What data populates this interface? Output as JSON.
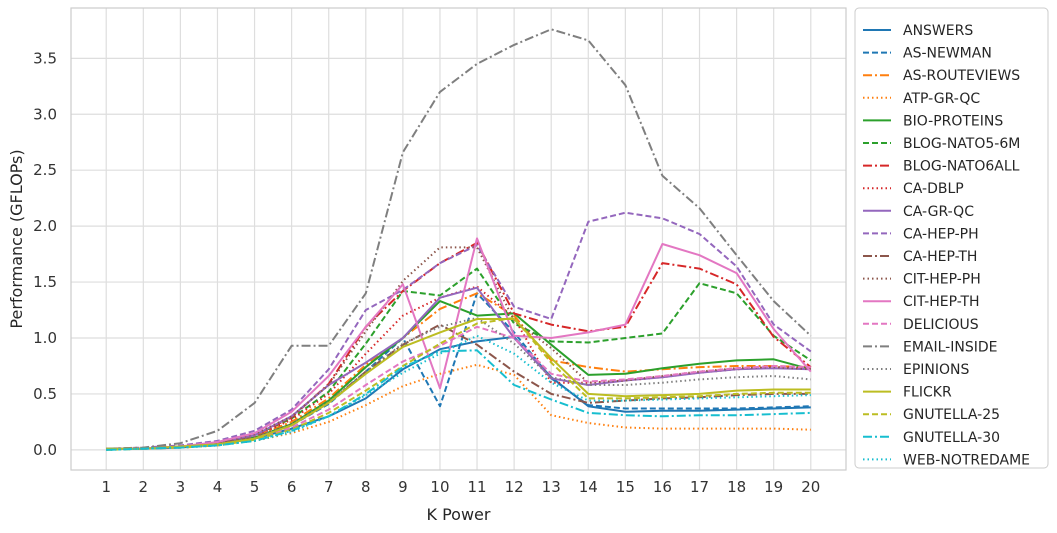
{
  "chart_data": {
    "type": "line",
    "xlabel": "K Power",
    "ylabel": "Performance (GFLOPs)",
    "x": [
      1,
      2,
      3,
      4,
      5,
      6,
      7,
      8,
      9,
      10,
      11,
      12,
      13,
      14,
      15,
      16,
      17,
      18,
      19,
      20
    ],
    "ylim": [
      -0.18,
      3.95
    ],
    "yticks": [
      0.0,
      0.5,
      1.0,
      1.5,
      2.0,
      2.5,
      3.0,
      3.5
    ],
    "ytick_labels": [
      "0.0",
      "0.5",
      "1.0",
      "1.5",
      "2.0",
      "2.5",
      "3.0",
      "3.5"
    ],
    "xtick_labels": [
      "1",
      "2",
      "3",
      "4",
      "5",
      "6",
      "7",
      "8",
      "9",
      "10",
      "11",
      "12",
      "13",
      "14",
      "15",
      "16",
      "17",
      "18",
      "19",
      "20"
    ],
    "grid": true,
    "legend_position": "outside-right",
    "series": [
      {
        "name": "ANSWERS",
        "color": "#1f77b4",
        "dash": "solid",
        "values": [
          0.01,
          0.01,
          0.02,
          0.05,
          0.1,
          0.19,
          0.3,
          0.46,
          0.72,
          0.9,
          0.97,
          1.01,
          0.65,
          0.39,
          0.34,
          0.35,
          0.35,
          0.36,
          0.37,
          0.38
        ]
      },
      {
        "name": "AS-NEWMAN",
        "color": "#1f77b4",
        "dash": "dashed",
        "values": [
          0.01,
          0.01,
          0.03,
          0.05,
          0.11,
          0.22,
          0.41,
          0.7,
          1.0,
          0.39,
          1.4,
          1.05,
          0.64,
          0.4,
          0.37,
          0.37,
          0.37,
          0.37,
          0.38,
          0.39
        ]
      },
      {
        "name": "AS-ROUTEVIEWS",
        "color": "#ff7f0e",
        "dash": "dashdot",
        "values": [
          0.01,
          0.01,
          0.03,
          0.05,
          0.12,
          0.25,
          0.46,
          0.76,
          1.0,
          1.26,
          1.4,
          1.2,
          0.8,
          0.74,
          0.7,
          0.72,
          0.74,
          0.75,
          0.75,
          0.74
        ]
      },
      {
        "name": "ATP-GR-QC",
        "color": "#ff7f0e",
        "dash": "dotted",
        "values": [
          0.0,
          0.01,
          0.02,
          0.04,
          0.08,
          0.15,
          0.25,
          0.4,
          0.57,
          0.68,
          0.76,
          0.67,
          0.31,
          0.24,
          0.2,
          0.19,
          0.19,
          0.19,
          0.19,
          0.18
        ]
      },
      {
        "name": "BIO-PROTEINS",
        "color": "#2ca02c",
        "dash": "solid",
        "values": [
          0.01,
          0.01,
          0.03,
          0.05,
          0.11,
          0.23,
          0.44,
          0.74,
          1.0,
          1.33,
          1.2,
          1.22,
          0.94,
          0.67,
          0.68,
          0.73,
          0.77,
          0.8,
          0.81,
          0.72
        ]
      },
      {
        "name": "BLOG-NATO5-6M",
        "color": "#2ca02c",
        "dash": "dashed",
        "values": [
          0.01,
          0.01,
          0.03,
          0.06,
          0.13,
          0.28,
          0.52,
          0.95,
          1.42,
          1.38,
          1.62,
          1.13,
          0.97,
          0.96,
          1.0,
          1.04,
          1.49,
          1.4,
          1.02,
          0.8
        ]
      },
      {
        "name": "BLOG-NATO6ALL",
        "color": "#d62728",
        "dash": "dashdot",
        "values": [
          0.01,
          0.01,
          0.03,
          0.06,
          0.13,
          0.29,
          0.59,
          1.1,
          1.42,
          1.67,
          1.85,
          1.22,
          1.12,
          1.06,
          1.1,
          1.67,
          1.62,
          1.48,
          1.01,
          0.74
        ]
      },
      {
        "name": "CA-DBLP",
        "color": "#d62728",
        "dash": "dotted",
        "values": [
          0.01,
          0.01,
          0.03,
          0.06,
          0.12,
          0.27,
          0.5,
          0.86,
          1.2,
          1.36,
          1.46,
          1.18,
          0.6,
          0.6,
          0.62,
          0.65,
          0.69,
          0.72,
          0.74,
          0.73
        ]
      },
      {
        "name": "CA-GR-QC",
        "color": "#9467bd",
        "dash": "solid",
        "values": [
          0.01,
          0.01,
          0.03,
          0.06,
          0.13,
          0.3,
          0.58,
          0.78,
          1.0,
          1.36,
          1.45,
          1.0,
          0.64,
          0.58,
          0.62,
          0.65,
          0.69,
          0.72,
          0.73,
          0.72
        ]
      },
      {
        "name": "CA-HEP-PH",
        "color": "#9467bd",
        "dash": "dashed",
        "values": [
          0.01,
          0.02,
          0.04,
          0.08,
          0.17,
          0.36,
          0.72,
          1.25,
          1.43,
          1.67,
          1.83,
          1.28,
          1.17,
          2.04,
          2.12,
          2.07,
          1.93,
          1.64,
          1.12,
          0.88
        ]
      },
      {
        "name": "CA-HEP-TH",
        "color": "#8c564b",
        "dash": "dashdot",
        "values": [
          0.01,
          0.01,
          0.03,
          0.06,
          0.11,
          0.22,
          0.42,
          0.7,
          0.94,
          1.12,
          0.94,
          0.7,
          0.5,
          0.42,
          0.44,
          0.46,
          0.47,
          0.49,
          0.5,
          0.5
        ]
      },
      {
        "name": "CIT-HEP-PH",
        "color": "#8c564b",
        "dash": "dotted",
        "values": [
          0.01,
          0.01,
          0.03,
          0.06,
          0.14,
          0.3,
          0.58,
          1.06,
          1.51,
          1.81,
          1.81,
          1.16,
          0.91,
          0.6,
          0.62,
          0.66,
          0.7,
          0.73,
          0.74,
          0.72
        ]
      },
      {
        "name": "CIT-HEP-TH",
        "color": "#e377c2",
        "dash": "solid",
        "values": [
          0.01,
          0.01,
          0.03,
          0.07,
          0.15,
          0.34,
          0.66,
          1.1,
          1.48,
          0.55,
          1.89,
          1.02,
          1.0,
          1.05,
          1.12,
          1.84,
          1.74,
          1.58,
          1.08,
          0.7
        ]
      },
      {
        "name": "DELICIOUS",
        "color": "#e377c2",
        "dash": "dashed",
        "values": [
          0.01,
          0.01,
          0.02,
          0.04,
          0.1,
          0.2,
          0.36,
          0.58,
          0.79,
          0.93,
          1.1,
          1.0,
          0.68,
          0.61,
          0.63,
          0.66,
          0.7,
          0.73,
          0.75,
          0.74
        ]
      },
      {
        "name": "EMAIL-INSIDE",
        "color": "#7f7f7f",
        "dash": "dashdot",
        "values": [
          0.01,
          0.02,
          0.06,
          0.17,
          0.42,
          0.93,
          0.93,
          1.4,
          2.66,
          3.2,
          3.45,
          3.62,
          3.76,
          3.66,
          3.26,
          2.45,
          2.16,
          1.74,
          1.33,
          1.02
        ]
      },
      {
        "name": "EPINIONS",
        "color": "#7f7f7f",
        "dash": "dotted",
        "values": [
          0.01,
          0.01,
          0.03,
          0.05,
          0.11,
          0.23,
          0.43,
          0.7,
          0.95,
          1.1,
          1.18,
          0.95,
          0.65,
          0.58,
          0.58,
          0.6,
          0.63,
          0.65,
          0.66,
          0.63
        ]
      },
      {
        "name": "FLICKR",
        "color": "#bcbd22",
        "dash": "solid",
        "values": [
          0.01,
          0.01,
          0.03,
          0.05,
          0.1,
          0.22,
          0.42,
          0.68,
          0.92,
          1.05,
          1.17,
          1.17,
          0.82,
          0.5,
          0.48,
          0.49,
          0.5,
          0.53,
          0.54,
          0.54
        ]
      },
      {
        "name": "GNUTELLA-25",
        "color": "#bcbd22",
        "dash": "dashed",
        "values": [
          0.0,
          0.01,
          0.02,
          0.04,
          0.09,
          0.18,
          0.33,
          0.53,
          0.75,
          0.95,
          1.13,
          1.18,
          0.78,
          0.46,
          0.46,
          0.47,
          0.48,
          0.5,
          0.51,
          0.51
        ]
      },
      {
        "name": "GNUTELLA-30",
        "color": "#17becf",
        "dash": "dashdot",
        "values": [
          0.0,
          0.01,
          0.02,
          0.04,
          0.08,
          0.17,
          0.3,
          0.5,
          0.74,
          0.88,
          0.89,
          0.58,
          0.45,
          0.33,
          0.31,
          0.3,
          0.31,
          0.31,
          0.32,
          0.33
        ]
      },
      {
        "name": "WEB-NOTREDAME",
        "color": "#17becf",
        "dash": "dotted",
        "values": [
          0.0,
          0.01,
          0.02,
          0.04,
          0.08,
          0.16,
          0.3,
          0.49,
          0.69,
          0.86,
          1.02,
          0.86,
          0.6,
          0.44,
          0.44,
          0.45,
          0.46,
          0.47,
          0.48,
          0.49
        ]
      }
    ]
  }
}
